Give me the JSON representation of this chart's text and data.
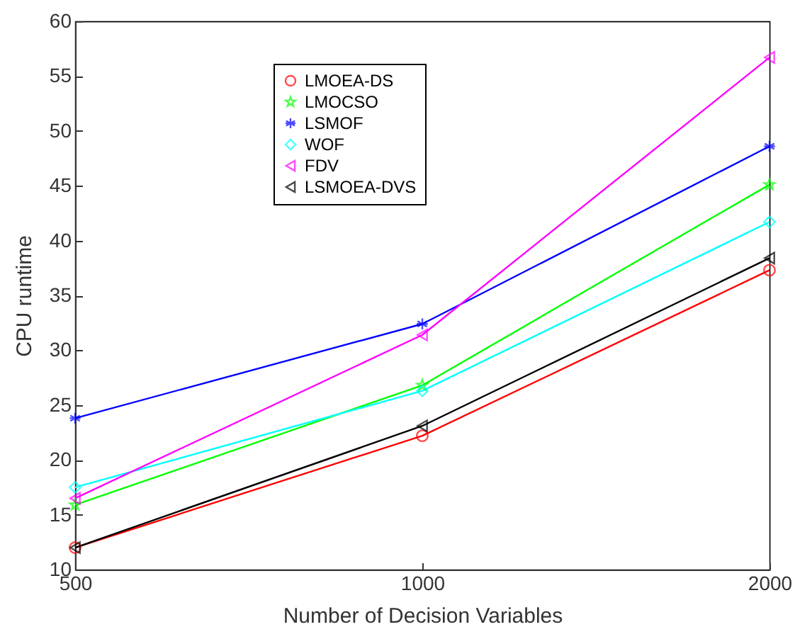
{
  "chart_data": {
    "type": "line",
    "xlabel": "Number of Decision Variables",
    "ylabel": "CPU runtime",
    "categories": [
      "500",
      "1000",
      "2000"
    ],
    "series": [
      {
        "name": "LMOEA-DS",
        "color": "#ff0000",
        "marker": "circle",
        "values": [
          12.0,
          22.2,
          37.3
        ]
      },
      {
        "name": "LMOCSO",
        "color": "#00ff00",
        "marker": "star",
        "values": [
          15.9,
          26.8,
          45.1
        ]
      },
      {
        "name": "LSMOF",
        "color": "#0000ff",
        "marker": "cross",
        "values": [
          23.8,
          32.4,
          48.6
        ]
      },
      {
        "name": "WOF",
        "color": "#00ffff",
        "marker": "diamond",
        "values": [
          17.5,
          26.3,
          41.7
        ]
      },
      {
        "name": "FDV",
        "color": "#ff00ff",
        "marker": "triangle",
        "values": [
          16.5,
          31.4,
          56.7
        ]
      },
      {
        "name": "LSMOEA-DVS",
        "color": "#000000",
        "marker": "triangle",
        "values": [
          12.0,
          23.1,
          38.4
        ]
      }
    ],
    "ylim": [
      10,
      60
    ],
    "yticks": [
      10,
      15,
      20,
      25,
      30,
      35,
      40,
      45,
      50,
      55,
      60
    ],
    "grid": false,
    "legend": "top left",
    "line_style": "solid"
  }
}
